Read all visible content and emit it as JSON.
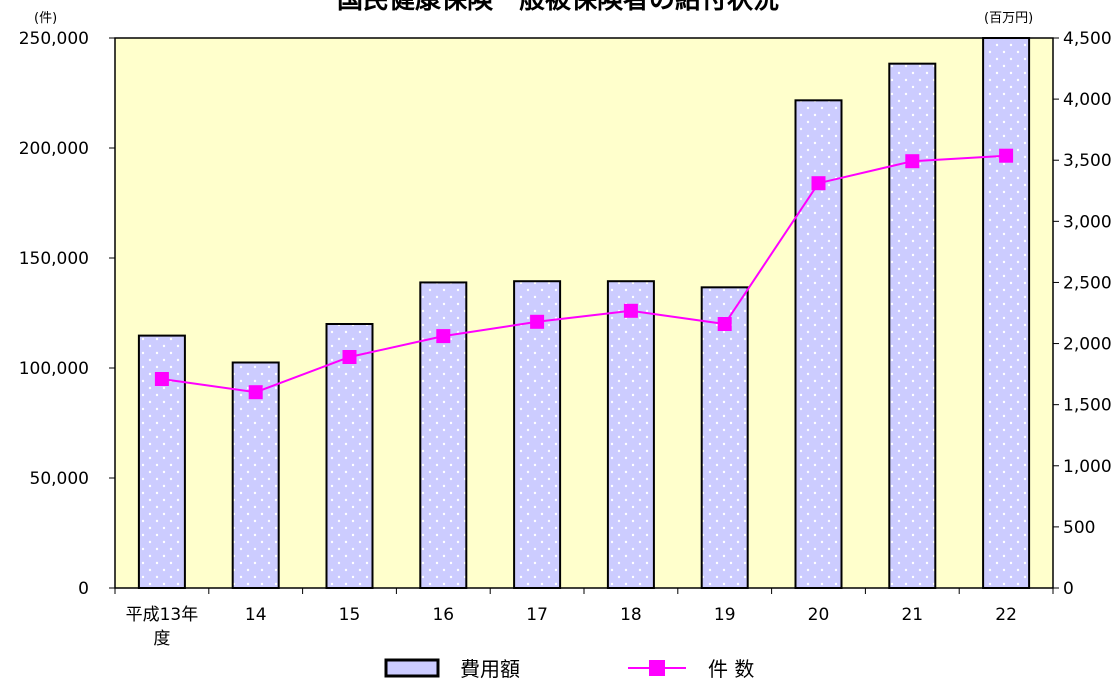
{
  "chart_data": {
    "type": "bar+line",
    "title": "国民健康保険一般被保険者の給付状況",
    "categories": [
      "平成13年度",
      "14",
      "15",
      "16",
      "17",
      "18",
      "19",
      "20",
      "21",
      "22"
    ],
    "category_lines": [
      [
        "平成13年",
        "度"
      ],
      [
        "14"
      ],
      [
        "15"
      ],
      [
        "16"
      ],
      [
        "17"
      ],
      [
        "18"
      ],
      [
        "19"
      ],
      [
        "20"
      ],
      [
        "21"
      ],
      [
        "22"
      ]
    ],
    "series": [
      {
        "name": "費用額",
        "type": "bar",
        "axis": "right",
        "unit": "(百万円)",
        "values": [
          2065,
          1845,
          2160,
          2500,
          2510,
          2510,
          2460,
          3990,
          4290,
          4500
        ],
        "color": "#ccccff"
      },
      {
        "name": "件 数",
        "type": "line",
        "axis": "left",
        "unit": "(件)",
        "values": [
          95000,
          89000,
          105000,
          114500,
          121000,
          126000,
          120000,
          184000,
          194000,
          196500
        ],
        "color": "#ff00ff"
      }
    ],
    "y_left": {
      "unit": "(件)",
      "range": [
        0,
        250000
      ],
      "ticks": [
        0,
        50000,
        100000,
        150000,
        200000,
        250000
      ],
      "tick_labels": [
        "0",
        "50,000",
        "100,000",
        "150,000",
        "200,000",
        "250,000"
      ]
    },
    "y_right": {
      "unit": "(百万円)",
      "range": [
        0,
        4500
      ],
      "ticks": [
        0,
        500,
        1000,
        1500,
        2000,
        2500,
        3000,
        3500,
        4000,
        4500
      ],
      "tick_labels": [
        "0",
        "500",
        "1,000",
        "1,500",
        "2,000",
        "2,500",
        "3,000",
        "3,500",
        "4,000",
        "4,500"
      ]
    },
    "plot_background": "#ffffcc",
    "grid": false,
    "legend_position": "bottom"
  }
}
